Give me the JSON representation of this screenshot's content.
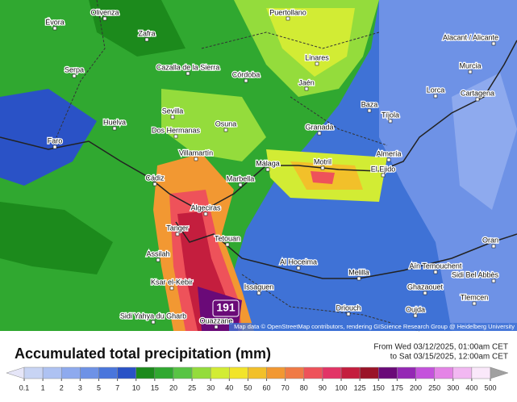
{
  "map": {
    "cities": [
      "Olivenza",
      "Évora",
      "Zafra",
      "Puertollano",
      "Serpa",
      "Cazalla de la Sierra",
      "Córdoba",
      "Linares",
      "Jaén",
      "Murcia",
      "Alacant / Alicante",
      "Lorca",
      "Cartagena",
      "Baza",
      "Tíjola",
      "Huelva",
      "Sevilla",
      "Dos Hermanas",
      "Osuna",
      "Granada",
      "Almería",
      "Faro",
      "Villamartín",
      "Cádiz",
      "Marbella",
      "Málaga",
      "Motril",
      "El Ejido",
      "Algeciras",
      "Tanger",
      "Tetouan",
      "Assilah",
      "Al Hoceima",
      "Aïn Temouchent",
      "Melilla",
      "Oran",
      "Ksar el-Kebir",
      "Issaguen",
      "Ghazaouet",
      "Tlemcen",
      "Driouch",
      "Oujda",
      "Sidi Yahya du Gharb",
      "Ouazzane",
      "Sidi Bel Abbès"
    ],
    "max_label": "191",
    "attribution": "Map data © OpenStreetMap contributors, rendering GIScience Research Group @ Heidelberg University"
  },
  "legend": {
    "title": "Accumulated total precipitation (mm)",
    "period": [
      "From Wed 03/12/2025, 01:00am CET",
      "to Sat 03/15/2025, 12:00am CET"
    ],
    "ticks": [
      0.1,
      1,
      2,
      3,
      5,
      7,
      10,
      15,
      20,
      25,
      30,
      40,
      50,
      60,
      70,
      80,
      90,
      100,
      125,
      150,
      175,
      200,
      250,
      300,
      400,
      500
    ],
    "colors": [
      "#e6e6f8",
      "#c8d4f4",
      "#aec2f2",
      "#8eaaee",
      "#6e92e6",
      "#4a76dc",
      "#2a52c6",
      "#1c8a1c",
      "#30a830",
      "#58c444",
      "#94dc3c",
      "#d2ec34",
      "#f2e42a",
      "#f2c02a",
      "#f29832",
      "#f07a46",
      "#ee525a",
      "#e23466",
      "#c41e3e",
      "#9a1428",
      "#6a0a78",
      "#9428b4",
      "#c452dc",
      "#e484e6",
      "#f2b8f2",
      "#fae8fa",
      "#a0a0a0"
    ]
  }
}
